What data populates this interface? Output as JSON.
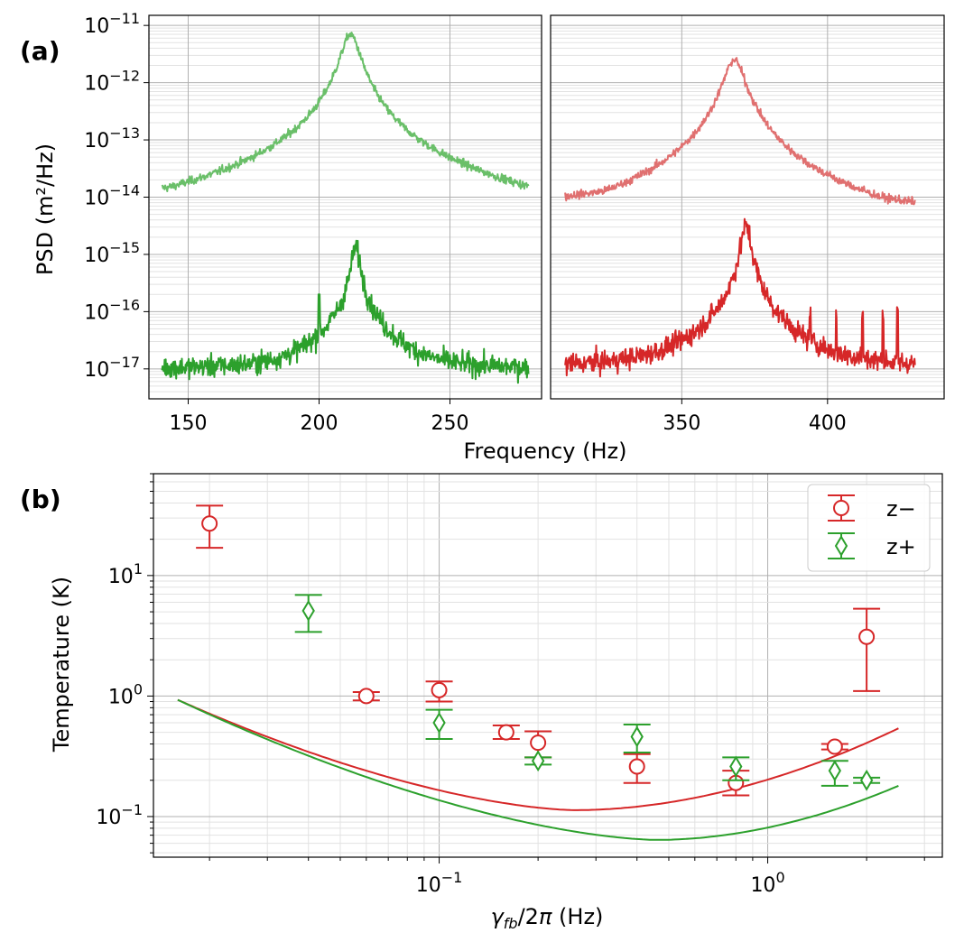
{
  "colors": {
    "green_light": "#6abf69",
    "green": "#2ca02c",
    "red_light": "#e07070",
    "red": "#d62728",
    "grid_major": "#b0b0b0",
    "grid_minor": "#e2e2e2"
  },
  "panel_labels": {
    "a": "(a)",
    "b": "(b)"
  },
  "chart_data": [
    {
      "type": "line",
      "panel": "(a) left",
      "scale": {
        "x": "linear",
        "y": "log"
      },
      "xlim": [
        135,
        285
      ],
      "ylim": [
        3e-18,
        1.5e-11
      ],
      "xticks": [
        150,
        200,
        250
      ],
      "ytick_exponents": [
        -11,
        -12,
        -13,
        -14,
        -15,
        -16,
        -17
      ],
      "ylabel": "PSD (m²/Hz)",
      "grid": "on",
      "series": [
        {
          "color": "green_light",
          "x_range": [
            140,
            280
          ],
          "peak_x": 212,
          "peak_y": 7e-12,
          "wing_start_y": 1e-14,
          "wing_end_y": 6e-15,
          "noise_level": "low"
        },
        {
          "color": "green",
          "x_range": [
            140,
            280
          ],
          "peak_x": 214,
          "peak_y": 1.2e-15,
          "floor_y": 1e-17,
          "spike_x": 200,
          "spike_y": 2e-16,
          "noise_level": "high"
        }
      ]
    },
    {
      "type": "line",
      "panel": "(a) right",
      "scale": {
        "x": "linear",
        "y": "log"
      },
      "xlim": [
        305,
        440
      ],
      "ylim": [
        3e-18,
        1.5e-11
      ],
      "xticks": [
        350,
        400
      ],
      "grid": "on",
      "xlabel_shared": "Frequency (Hz)",
      "series": [
        {
          "color": "red_light",
          "x_range": [
            310,
            430
          ],
          "peak_x": 368,
          "peak_y": 2.5e-12,
          "wing_start_y": 6e-15,
          "wing_end_y": 5e-15,
          "noise_level": "low"
        },
        {
          "color": "red",
          "x_range": [
            310,
            430
          ],
          "peak_x": 372,
          "peak_y": 3e-15,
          "floor_y": 1e-17,
          "spikes_x": [
            385,
            394,
            403,
            412,
            419,
            424
          ],
          "noise_level": "high"
        }
      ]
    },
    {
      "type": "scatter",
      "panel": "(b)",
      "scale": {
        "x": "log",
        "y": "log"
      },
      "xlim": [
        0.0135,
        3.4
      ],
      "ylim": [
        0.046,
        70
      ],
      "xticks": [
        0.1,
        1
      ],
      "xtick_labels": [
        [
          "10",
          "−1"
        ],
        [
          "10",
          "0"
        ]
      ],
      "ytick_labels": [
        [
          "10",
          "1"
        ],
        [
          "10",
          "0"
        ],
        [
          "10",
          "−1"
        ]
      ],
      "ytick_values": [
        10,
        1,
        0.1
      ],
      "xlabel": "γfb/2π (Hz)",
      "ylabel": "Temperature (K)",
      "grid": "on",
      "legend_position": "top-right",
      "series": [
        {
          "name": "z−",
          "marker": "circle",
          "color": "red",
          "points": [
            {
              "x": 0.02,
              "y": 27,
              "lo": 17,
              "hi": 38
            },
            {
              "x": 0.06,
              "y": 1.0,
              "lo": 0.92,
              "hi": 1.08
            },
            {
              "x": 0.1,
              "y": 1.12,
              "lo": 0.9,
              "hi": 1.32
            },
            {
              "x": 0.16,
              "y": 0.5,
              "lo": 0.44,
              "hi": 0.57
            },
            {
              "x": 0.2,
              "y": 0.41,
              "lo": 0.31,
              "hi": 0.51
            },
            {
              "x": 0.4,
              "y": 0.26,
              "lo": 0.19,
              "hi": 0.33
            },
            {
              "x": 0.8,
              "y": 0.19,
              "lo": 0.15,
              "hi": 0.24
            },
            {
              "x": 1.6,
              "y": 0.38,
              "lo": 0.36,
              "hi": 0.4
            },
            {
              "x": 2.0,
              "y": 3.1,
              "lo": 1.1,
              "hi": 5.3
            }
          ],
          "model_line": {
            "x0": 0.016,
            "x1": 2.5,
            "y_at_x0": 0.93,
            "minimum_x": 0.26,
            "minimum_y": 0.113,
            "y_at_x1": 0.54
          }
        },
        {
          "name": "z+",
          "marker": "diamond",
          "color": "green",
          "points": [
            {
              "x": 0.04,
              "y": 5.1,
              "lo": 3.4,
              "hi": 6.9
            },
            {
              "x": 0.1,
              "y": 0.6,
              "lo": 0.44,
              "hi": 0.77
            },
            {
              "x": 0.2,
              "y": 0.29,
              "lo": 0.27,
              "hi": 0.31
            },
            {
              "x": 0.4,
              "y": 0.46,
              "lo": 0.34,
              "hi": 0.58
            },
            {
              "x": 0.8,
              "y": 0.26,
              "lo": 0.2,
              "hi": 0.31
            },
            {
              "x": 1.6,
              "y": 0.24,
              "lo": 0.18,
              "hi": 0.29
            },
            {
              "x": 2.0,
              "y": 0.2,
              "lo": 0.19,
              "hi": 0.21
            }
          ],
          "model_line": {
            "x0": 0.016,
            "x1": 2.5,
            "y_at_x0": 0.93,
            "minimum_x": 0.46,
            "minimum_y": 0.064,
            "y_at_x1": 0.18
          }
        }
      ]
    }
  ]
}
